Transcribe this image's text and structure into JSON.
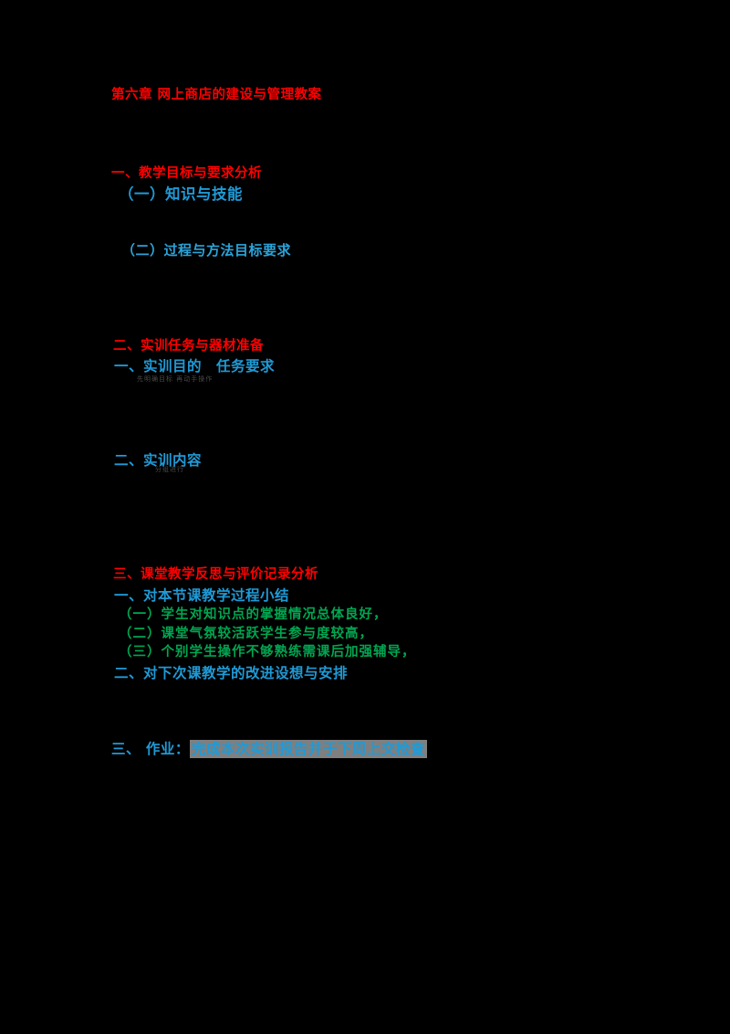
{
  "page": {
    "background": "#000000",
    "type": "lesson-plan-document"
  },
  "colors": {
    "heading_red": "#ff0000",
    "item_blue": "#1f9ad6",
    "subitem_cyan": "#2ba4da",
    "note_green": "#00a651",
    "annotation_gray": "#4a4a4a",
    "highlight_gray": "#7f7f7f"
  },
  "document": {
    "title": {
      "text": "第六章 网上商店的建设与管理教案"
    },
    "section1": {
      "heading": "一、教学目标与要求分析",
      "item1": "（一）知识与技能",
      "item2": "（二）过程与方法目标要求"
    },
    "section2": {
      "heading": "二、实训任务与器材准备",
      "item1": "一、实训目的　任务要求",
      "item1_note": "先明确目标 再动手操作",
      "item2": "二、实训内容",
      "item2_note": "分组进行"
    },
    "section3": {
      "heading": "三、课堂教学反思与评价记录分析",
      "item1": "一、对本节课教学过程小结",
      "note1": "（一）学生对知识点的掌握情况总体良好，",
      "note2": "（二）课堂气氛较活跃学生参与度较高，",
      "note3": "（三）个别学生操作不够熟练需课后加强辅导，",
      "item2": "二、对下次课教学的改进设想与安排"
    },
    "footer": {
      "prefix": "三、 作业：",
      "highlighted": "完成本次实训报告并于下周上交检查"
    }
  }
}
